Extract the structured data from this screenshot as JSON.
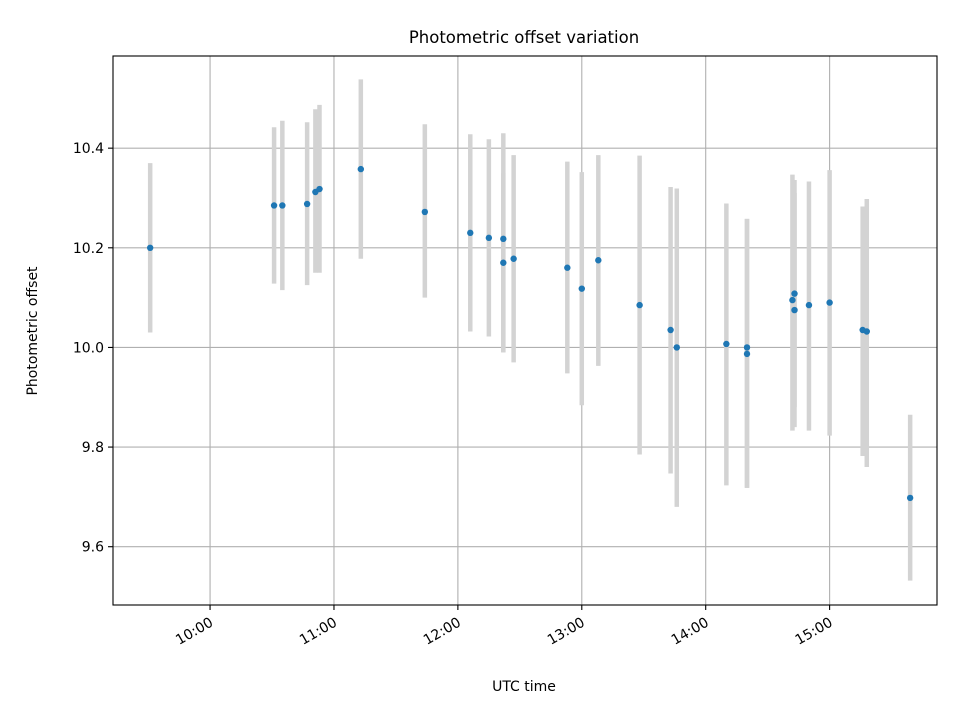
{
  "chart_data": {
    "type": "scatter",
    "title": "Photometric offset variation",
    "xlabel": "UTC time",
    "ylabel": "Photometric offset",
    "xlim": [
      "09:13",
      "15:52"
    ],
    "ylim": [
      9.483,
      10.585
    ],
    "grid": true,
    "x_ticks": [
      "10:00",
      "11:00",
      "12:00",
      "13:00",
      "14:00",
      "15:00"
    ],
    "y_ticks": [
      "9.6",
      "9.8",
      "10.0",
      "10.2",
      "10.4"
    ],
    "colors": {
      "point": "#1f77b4",
      "errorbar": "#d3d3d3",
      "grid": "#b0b0b0"
    },
    "series": [
      {
        "x": [
          "09:31",
          "10:31",
          "10:35",
          "10:47",
          "10:51",
          "10:53",
          "11:13",
          "11:44",
          "12:06",
          "12:15",
          "12:22",
          "12:22",
          "12:27",
          "12:53",
          "13:00",
          "13:08",
          "13:28",
          "13:43",
          "13:46",
          "14:10",
          "14:20",
          "14:20",
          "14:42",
          "14:43",
          "14:43",
          "14:50",
          "15:00",
          "15:16",
          "15:18",
          "15:39"
        ],
        "y": [
          10.2,
          10.285,
          10.285,
          10.288,
          10.312,
          10.318,
          10.358,
          10.272,
          10.23,
          10.22,
          10.218,
          10.17,
          10.178,
          10.16,
          10.118,
          10.175,
          10.085,
          10.035,
          10.0,
          10.007,
          10.0,
          9.987,
          10.095,
          10.108,
          10.075,
          10.085,
          10.09,
          10.035,
          10.032,
          9.698
        ],
        "err_low": [
          10.03,
          10.128,
          10.115,
          10.125,
          10.15,
          10.15,
          10.178,
          10.1,
          10.032,
          10.022,
          9.99,
          9.99,
          9.97,
          9.948,
          9.884,
          9.963,
          9.785,
          9.747,
          9.68,
          9.723,
          9.718,
          9.718,
          9.833,
          9.88,
          9.84,
          9.833,
          9.823,
          9.782,
          9.76,
          9.532
        ],
        "err_high": [
          10.37,
          10.442,
          10.455,
          10.452,
          10.478,
          10.487,
          10.538,
          10.448,
          10.428,
          10.418,
          10.43,
          10.35,
          10.386,
          10.373,
          10.352,
          10.386,
          10.385,
          10.322,
          10.319,
          10.289,
          10.258,
          10.258,
          10.347,
          10.336,
          10.31,
          10.333,
          10.356,
          10.283,
          10.298,
          9.865
        ]
      }
    ]
  }
}
